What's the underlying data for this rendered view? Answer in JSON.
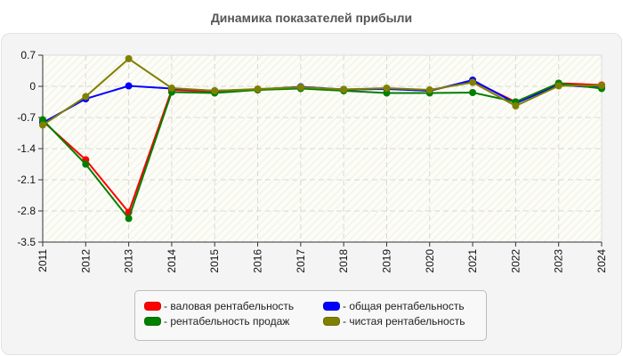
{
  "chart_data": {
    "type": "line",
    "title": "Динамика показателей прибыли",
    "xlabel": "",
    "ylabel": "",
    "ylim": [
      -3.5,
      0.7
    ],
    "yticks": [
      "0.7",
      "0",
      "-0.7",
      "-1.4",
      "-2.1",
      "-2.8",
      "-3.5"
    ],
    "grid": true,
    "legend_position": "bottom",
    "categories": [
      "2011",
      "2012",
      "2013",
      "2014",
      "2015",
      "2016",
      "2017",
      "2018",
      "2019",
      "2020",
      "2021",
      "2022",
      "2023",
      "2024"
    ],
    "series": [
      {
        "name": "валовая рентабельность",
        "color": "#ff0000",
        "values": [
          -0.78,
          -1.65,
          -2.83,
          -0.08,
          -0.12,
          -0.08,
          -0.03,
          -0.08,
          -0.05,
          -0.1,
          0.12,
          -0.35,
          0.07,
          0.03
        ]
      },
      {
        "name": "общая рентабельность",
        "color": "#0000ff",
        "values": [
          -0.82,
          -0.28,
          0.01,
          -0.05,
          -0.1,
          -0.07,
          -0.01,
          -0.07,
          -0.06,
          -0.1,
          0.14,
          -0.38,
          0.03,
          -0.03
        ]
      },
      {
        "name": "рентабельность продаж",
        "color": "#008000",
        "values": [
          -0.75,
          -1.75,
          -2.97,
          -0.13,
          -0.15,
          -0.08,
          -0.05,
          -0.1,
          -0.15,
          -0.15,
          -0.14,
          -0.35,
          0.07,
          -0.05
        ]
      },
      {
        "name": "чистая рентабельность",
        "color": "#808000",
        "values": [
          -0.87,
          -0.23,
          0.62,
          -0.04,
          -0.1,
          -0.06,
          -0.02,
          -0.07,
          -0.04,
          -0.08,
          0.09,
          -0.44,
          0.01,
          0.02
        ]
      }
    ]
  },
  "legend": {
    "items": [
      {
        "label": "- валовая рентабельность",
        "color": "#ff0000"
      },
      {
        "label": "- общая рентабельность",
        "color": "#0000ff"
      },
      {
        "label": "- рентабельность продаж",
        "color": "#008000"
      },
      {
        "label": "- чистая рентабельность",
        "color": "#808000"
      }
    ]
  }
}
